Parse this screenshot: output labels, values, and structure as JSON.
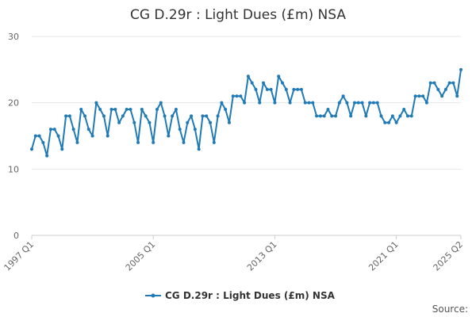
{
  "chart_data": {
    "type": "line",
    "title": "CG D.29r : Light Dues (£m) NSA",
    "xlabel": "",
    "ylabel": "",
    "ylim": [
      0,
      30
    ],
    "yticks": [
      "0",
      "10",
      "20",
      "30"
    ],
    "xticks": [
      "1997 Q1",
      "2005 Q1",
      "2013 Q1",
      "2021 Q1",
      "2025 Q2"
    ],
    "x_range": [
      "1997 Q1",
      "2025 Q2"
    ],
    "grid": "horizontal",
    "legend_position": "bottom",
    "series_color": "#1f7ab6",
    "series": [
      {
        "name": "CG D.29r : Light Dues (£m) NSA",
        "values": [
          13,
          15,
          15,
          14,
          12,
          16,
          16,
          15,
          13,
          18,
          18,
          16,
          14,
          19,
          18,
          16,
          15,
          20,
          19,
          18,
          15,
          19,
          19,
          17,
          18,
          19,
          19,
          17,
          14,
          19,
          18,
          17,
          14,
          19,
          20,
          18,
          15,
          18,
          19,
          16,
          14,
          17,
          18,
          16,
          13,
          18,
          18,
          17,
          14,
          18,
          20,
          19,
          17,
          21,
          21,
          21,
          20,
          24,
          23,
          22,
          20,
          23,
          22,
          22,
          20,
          24,
          23,
          22,
          20,
          22,
          22,
          22,
          20,
          20,
          20,
          18,
          18,
          18,
          19,
          18,
          18,
          20,
          21,
          20,
          18,
          20,
          20,
          20,
          18,
          20,
          20,
          20,
          18,
          17,
          17,
          18,
          17,
          18,
          19,
          18,
          18,
          21,
          21,
          21,
          20,
          23,
          23,
          22,
          21,
          22,
          23,
          23,
          21,
          25
        ]
      }
    ]
  },
  "legend": {
    "label": "CG D.29r : Light Dues (£m) NSA"
  },
  "footer": {
    "source_label": "Source:"
  }
}
